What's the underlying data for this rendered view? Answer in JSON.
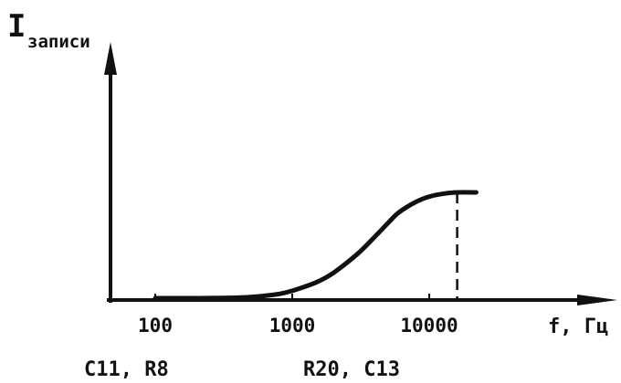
{
  "chart_data": {
    "type": "line",
    "ylabel": {
      "main": "I",
      "sub": "записи"
    },
    "xlabel": "f, Гц",
    "x_scale": "log",
    "xlim": [
      60,
      40000
    ],
    "ylim": [
      0,
      1
    ],
    "x_ticks": [
      100,
      1000,
      10000
    ],
    "x_tick_labels": [
      "100",
      "1000",
      "10000"
    ],
    "y_ticks_shown": false,
    "series": [
      {
        "x": [
          100,
          200,
          400,
          600,
          800,
          1000,
          1500,
          2000,
          3000,
          4000,
          5000,
          6000,
          8000,
          10000,
          13000,
          16000,
          22000
        ],
        "values": [
          0.0,
          0.0,
          0.005,
          0.02,
          0.04,
          0.07,
          0.15,
          0.24,
          0.42,
          0.58,
          0.71,
          0.81,
          0.91,
          0.96,
          0.99,
          1.0,
          1.0
        ]
      }
    ],
    "marker_x": 16000,
    "annotations": [
      "C11, R8",
      "R20, C13"
    ]
  }
}
